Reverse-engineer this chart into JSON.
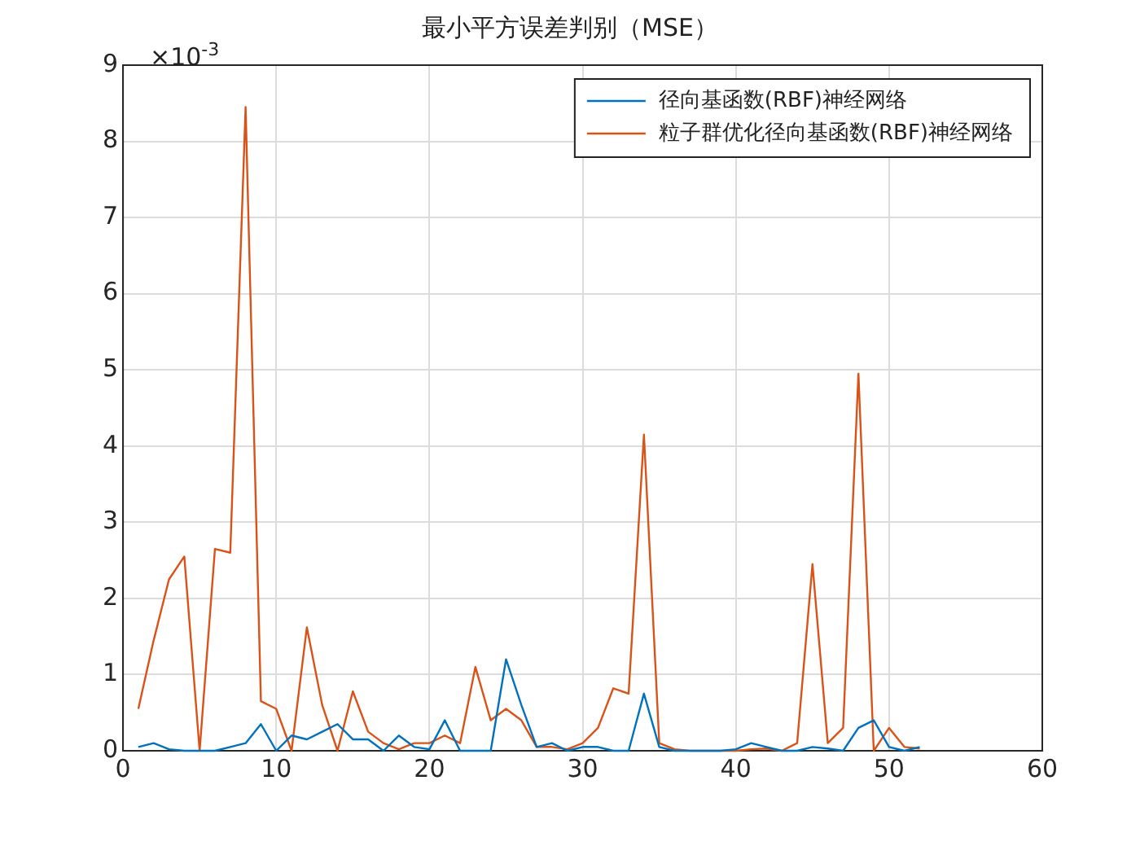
{
  "chart_data": {
    "type": "line",
    "title": "最小平方误差判别（MSE）",
    "x": [
      1,
      2,
      3,
      4,
      5,
      6,
      7,
      8,
      9,
      10,
      11,
      12,
      13,
      14,
      15,
      16,
      17,
      18,
      19,
      20,
      21,
      22,
      23,
      24,
      25,
      26,
      27,
      28,
      29,
      30,
      31,
      32,
      33,
      34,
      35,
      36,
      37,
      38,
      39,
      40,
      41,
      42,
      43,
      44,
      45,
      46,
      47,
      48,
      49,
      50,
      51,
      52
    ],
    "series": [
      {
        "name": "径向基函数(RBF)神经网络",
        "color": "#0072bd",
        "values": [
          0.05,
          0.1,
          0.02,
          0,
          0,
          0,
          0.05,
          0.1,
          0.35,
          0,
          0.2,
          0.15,
          0.25,
          0.35,
          0.15,
          0.15,
          0,
          0.2,
          0.05,
          0.02,
          0.4,
          0,
          0,
          0,
          1.2,
          0.6,
          0.05,
          0.1,
          0,
          0.05,
          0.05,
          0,
          0,
          0.75,
          0.05,
          0,
          0,
          0,
          0,
          0.02,
          0.1,
          0.05,
          0,
          0,
          0.05,
          0.03,
          0,
          0.3,
          0.4,
          0.05,
          0,
          0.05
        ]
      },
      {
        "name": "粒子群优化径向基函数(RBF)神经网络",
        "color": "#d95319",
        "values": [
          0.55,
          1.45,
          2.25,
          2.55,
          0,
          2.65,
          2.6,
          8.45,
          0.65,
          0.55,
          0,
          1.62,
          0.6,
          0,
          0.78,
          0.25,
          0.1,
          0.02,
          0.1,
          0.1,
          0.2,
          0.1,
          1.1,
          0.4,
          0.55,
          0.4,
          0.05,
          0.05,
          0.02,
          0.1,
          0.3,
          0.82,
          0.75,
          4.15,
          0.1,
          0.02,
          0,
          0,
          0,
          0,
          0.02,
          0.03,
          0,
          0.1,
          2.45,
          0.1,
          0.3,
          4.95,
          0,
          0.3,
          0.05,
          0.03
        ]
      }
    ],
    "xlim": [
      0,
      60
    ],
    "xticks": [
      0,
      10,
      20,
      30,
      40,
      50,
      60
    ],
    "ylim": [
      0,
      9
    ],
    "yticks": [
      0,
      1,
      2,
      3,
      4,
      5,
      6,
      7,
      8,
      9
    ],
    "annotations": [
      "×10$^{-3}$"
    ],
    "grid": true,
    "legend": "top right",
    "marker": "none",
    "line_style": "solid"
  }
}
